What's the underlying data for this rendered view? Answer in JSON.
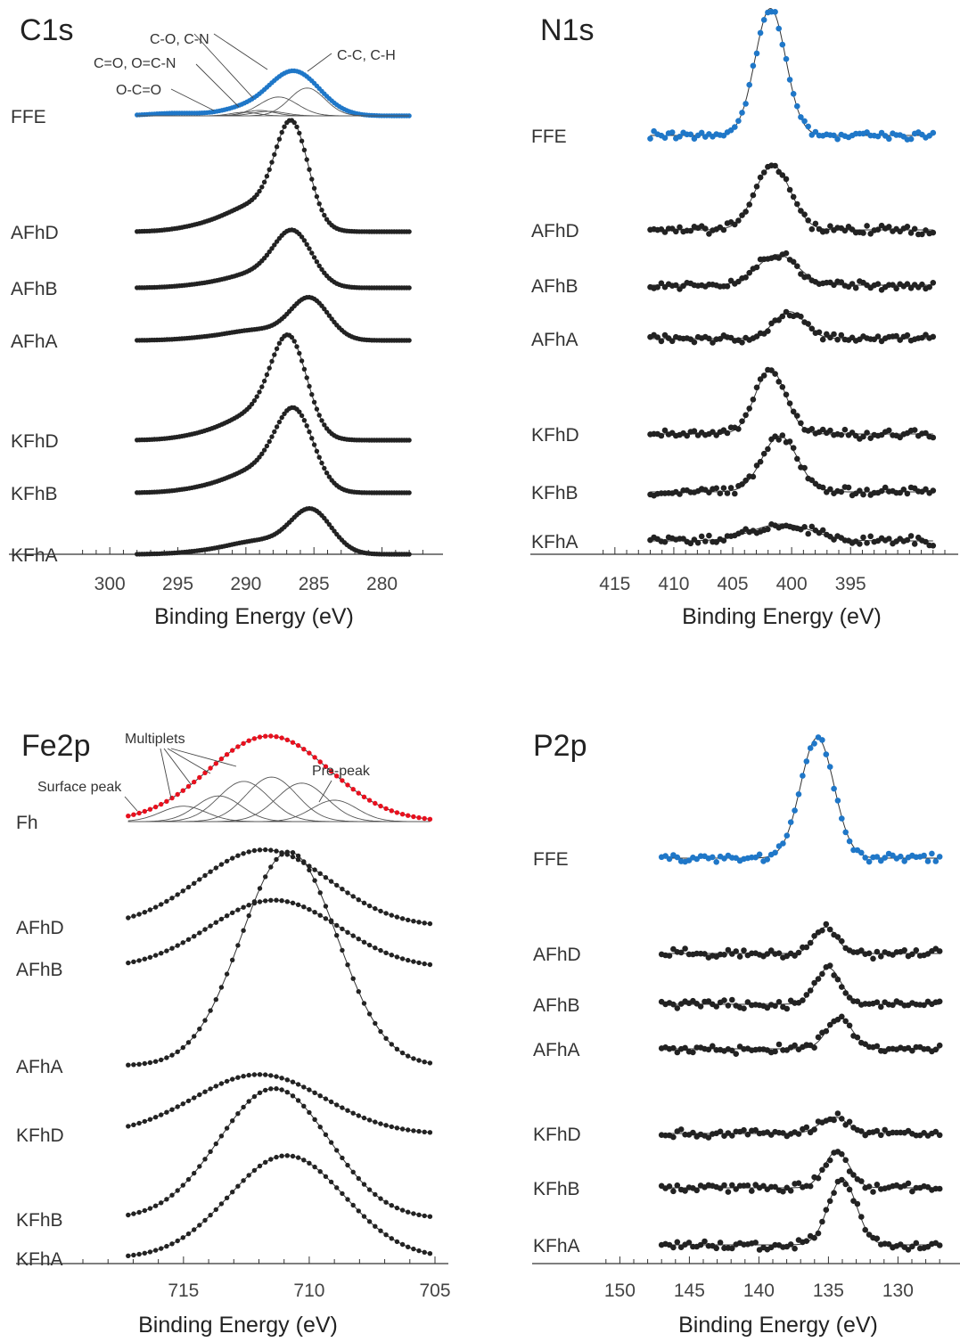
{
  "colors": {
    "blue": "#1f77c8",
    "red": "#e8101e",
    "black": "#222222",
    "axis": "#333333",
    "component": "#555555"
  },
  "chart_data": [
    {
      "type": "scatter",
      "title": "C1s",
      "xlabel": "Binding Energy (eV)",
      "xlim": [
        302.5,
        276.5
      ],
      "xticks": [
        300,
        295,
        290,
        285,
        280
      ],
      "series": [
        {
          "name": "FFE",
          "color": "blue",
          "x_range": [
            298,
            278
          ],
          "n": 110,
          "peaks": [
            [
              286.5,
              1.0,
              1.9
            ],
            [
              295,
              0.06,
              2.0
            ],
            [
              290.5,
              0.12,
              1.5
            ]
          ],
          "height": 0.42,
          "noise": 0
        },
        {
          "name": "AFhD",
          "color": "black",
          "x_range": [
            298,
            278
          ],
          "n": 110,
          "peaks": [
            [
              286.6,
              1.0,
              1.2
            ],
            [
              289,
              0.28,
              2.2
            ],
            [
              293,
              0.05,
              2.0
            ]
          ],
          "height": 0.9,
          "noise": 0
        },
        {
          "name": "AFhB",
          "color": "black",
          "x_range": [
            298,
            278
          ],
          "n": 110,
          "peaks": [
            [
              286.5,
              1.0,
              1.4
            ],
            [
              289,
              0.28,
              2.2
            ],
            [
              293,
              0.05,
              2.0
            ]
          ],
          "height": 0.47,
          "noise": 0
        },
        {
          "name": "AFhA",
          "color": "black",
          "x_range": [
            298,
            278
          ],
          "n": 110,
          "peaks": [
            [
              285.3,
              1.0,
              1.4
            ],
            [
              289,
              0.25,
              2.2
            ],
            [
              293,
              0.05,
              2.0
            ]
          ],
          "height": 0.38,
          "noise": 0
        },
        {
          "name": "KFhD",
          "color": "black",
          "x_range": [
            298,
            278
          ],
          "n": 110,
          "peaks": [
            [
              286.8,
              1.0,
              1.3
            ],
            [
              289,
              0.3,
              2.2
            ],
            [
              293,
              0.05,
              2.0
            ]
          ],
          "height": 0.83,
          "noise": 0
        },
        {
          "name": "KFhB",
          "color": "black",
          "x_range": [
            298,
            278
          ],
          "n": 110,
          "peaks": [
            [
              286.4,
              1.0,
              1.4
            ],
            [
              289,
              0.3,
              2.2
            ],
            [
              293,
              0.05,
              2.0
            ]
          ],
          "height": 0.69,
          "noise": 0
        },
        {
          "name": "KFhA",
          "color": "black",
          "x_range": [
            298,
            278
          ],
          "n": 110,
          "peaks": [
            [
              285.2,
              1.0,
              1.5
            ],
            [
              289,
              0.3,
              2.2
            ],
            [
              293,
              0.05,
              2.0
            ]
          ],
          "height": 0.4,
          "noise": 0
        }
      ],
      "components": [
        [
          285.5,
          0.62,
          1.3
        ],
        [
          287.6,
          0.42,
          1.4
        ],
        [
          289.0,
          0.12,
          1.1
        ],
        [
          290.1,
          0.08,
          1.0
        ],
        [
          288.3,
          0.1,
          1.2
        ]
      ],
      "annotations": [
        {
          "text": "C-O, C-N"
        },
        {
          "text": "C=O, O=C-N"
        },
        {
          "text": "O-C=O"
        },
        {
          "text": "C-C, C-H"
        }
      ]
    },
    {
      "type": "scatter",
      "title": "N1s",
      "xlabel": "Binding Energy (eV)",
      "xlim": [
        416.5,
        387
      ],
      "xticks": [
        415,
        410,
        405,
        400,
        395
      ],
      "series": [
        {
          "name": "FFE",
          "color": "blue",
          "x_range": [
            412,
            388
          ],
          "n": 78,
          "peaks": [
            [
              401.8,
              1.0,
              1.3
            ]
          ],
          "height": 0.75,
          "noise": 0.04
        },
        {
          "name": "AFhD",
          "color": "black",
          "x_range": [
            412,
            388
          ],
          "n": 78,
          "peaks": [
            [
              401.6,
              1.0,
              1.5
            ]
          ],
          "height": 0.38,
          "noise": 0.04
        },
        {
          "name": "AFhB",
          "color": "black",
          "x_range": [
            412,
            388
          ],
          "n": 78,
          "peaks": [
            [
              401.2,
              1.0,
              1.7
            ]
          ],
          "height": 0.18,
          "noise": 0.05
        },
        {
          "name": "AFhA",
          "color": "black",
          "x_range": [
            412,
            388
          ],
          "n": 78,
          "peaks": [
            [
              400.2,
              1.0,
              1.3
            ]
          ],
          "height": 0.16,
          "noise": 0.04
        },
        {
          "name": "KFhD",
          "color": "black",
          "x_range": [
            412,
            388
          ],
          "n": 78,
          "peaks": [
            [
              401.8,
              1.0,
              1.3
            ]
          ],
          "height": 0.38,
          "noise": 0.04
        },
        {
          "name": "KFhB",
          "color": "black",
          "x_range": [
            412,
            388
          ],
          "n": 78,
          "peaks": [
            [
              401.0,
              1.0,
              1.5
            ]
          ],
          "height": 0.33,
          "noise": 0.05
        },
        {
          "name": "KFhA",
          "color": "black",
          "x_range": [
            412,
            388
          ],
          "n": 78,
          "peaks": [
            [
              400.8,
              1.0,
              2.5
            ]
          ],
          "height": 0.1,
          "noise": 0.05
        }
      ],
      "components": [],
      "annotations": []
    },
    {
      "type": "scatter",
      "title": "Fe2p",
      "xlabel": "Binding Energy (eV)",
      "xlim": [
        719,
        705
      ],
      "xticks": [
        715,
        710,
        705
      ],
      "series": [
        {
          "name": "Fh",
          "color": "red",
          "x_range": [
            717.2,
            705.2
          ],
          "n": 56,
          "peaks": [
            [
              711.6,
              1.0,
              2.4
            ]
          ],
          "height": 0.4,
          "noise": 0
        },
        {
          "name": "AFhD",
          "color": "black",
          "x_range": [
            717.2,
            705.2
          ],
          "n": 56,
          "peaks": [
            [
              711.8,
              1.0,
              2.6
            ]
          ],
          "height": 0.36,
          "noise": 0
        },
        {
          "name": "AFhB",
          "color": "black",
          "x_range": [
            717.2,
            705.2
          ],
          "n": 56,
          "peaks": [
            [
              711.4,
              1.0,
              2.6
            ]
          ],
          "height": 0.32,
          "noise": 0
        },
        {
          "name": "AFhA",
          "color": "black",
          "x_range": [
            717.2,
            705.2
          ],
          "n": 56,
          "peaks": [
            [
              710.8,
              1.0,
              1.9
            ]
          ],
          "height": 1.0,
          "noise": 0
        },
        {
          "name": "KFhD",
          "color": "black",
          "x_range": [
            717.2,
            705.2
          ],
          "n": 56,
          "peaks": [
            [
              712.0,
              1.0,
              2.6
            ]
          ],
          "height": 0.28,
          "noise": 0
        },
        {
          "name": "KFhB",
          "color": "black",
          "x_range": [
            717.2,
            705.2
          ],
          "n": 56,
          "peaks": [
            [
              711.4,
              1.0,
              2.2
            ]
          ],
          "height": 0.61,
          "noise": 0
        },
        {
          "name": "KFhA",
          "color": "black",
          "x_range": [
            717.2,
            705.2
          ],
          "n": 56,
          "peaks": [
            [
              710.9,
              1.0,
              2.3
            ]
          ],
          "height": 0.48,
          "noise": 0
        }
      ],
      "components": [
        [
          715.0,
          0.18,
          0.9
        ],
        [
          713.6,
          0.3,
          0.9
        ],
        [
          712.6,
          0.47,
          1.0
        ],
        [
          711.5,
          0.52,
          1.0
        ],
        [
          710.3,
          0.45,
          1.0
        ],
        [
          709.0,
          0.25,
          0.9
        ]
      ],
      "annotations": [
        {
          "text": "Multiplets"
        },
        {
          "text": "Surface peak"
        },
        {
          "text": "Pre-peak"
        }
      ]
    },
    {
      "type": "scatter",
      "title": "P2p",
      "xlabel": "Binding Energy (eV)",
      "xlim": [
        151.5,
        126.5
      ],
      "xticks": [
        150,
        145,
        140,
        135,
        130
      ],
      "series": [
        {
          "name": "FFE",
          "color": "blue",
          "x_range": [
            147,
            127
          ],
          "n": 72,
          "peaks": [
            [
              135.8,
              1.0,
              1.2
            ]
          ],
          "height": 0.73,
          "noise": 0.04
        },
        {
          "name": "AFhD",
          "color": "black",
          "x_range": [
            147,
            127
          ],
          "n": 72,
          "peaks": [
            [
              135.2,
              1.0,
              0.8
            ]
          ],
          "height": 0.16,
          "noise": 0.05
        },
        {
          "name": "AFhB",
          "color": "black",
          "x_range": [
            147,
            127
          ],
          "n": 72,
          "peaks": [
            [
              135.0,
              1.0,
              0.9
            ]
          ],
          "height": 0.22,
          "noise": 0.05
        },
        {
          "name": "AFhA",
          "color": "black",
          "x_range": [
            147,
            127
          ],
          "n": 72,
          "peaks": [
            [
              134.2,
              1.0,
              0.9
            ]
          ],
          "height": 0.19,
          "noise": 0.05
        },
        {
          "name": "KFhD",
          "color": "black",
          "x_range": [
            147,
            127
          ],
          "n": 72,
          "peaks": [
            [
              134.6,
              1.0,
              1.0
            ]
          ],
          "height": 0.1,
          "noise": 0.04
        },
        {
          "name": "KFhB",
          "color": "black",
          "x_range": [
            147,
            127
          ],
          "n": 72,
          "peaks": [
            [
              134.4,
              1.0,
              0.9
            ]
          ],
          "height": 0.22,
          "noise": 0.05
        },
        {
          "name": "KFhA",
          "color": "black",
          "x_range": [
            147,
            127
          ],
          "n": 72,
          "peaks": [
            [
              134.0,
              1.0,
              1.0
            ]
          ],
          "height": 0.4,
          "noise": 0.05
        }
      ],
      "components": [],
      "annotations": []
    }
  ]
}
